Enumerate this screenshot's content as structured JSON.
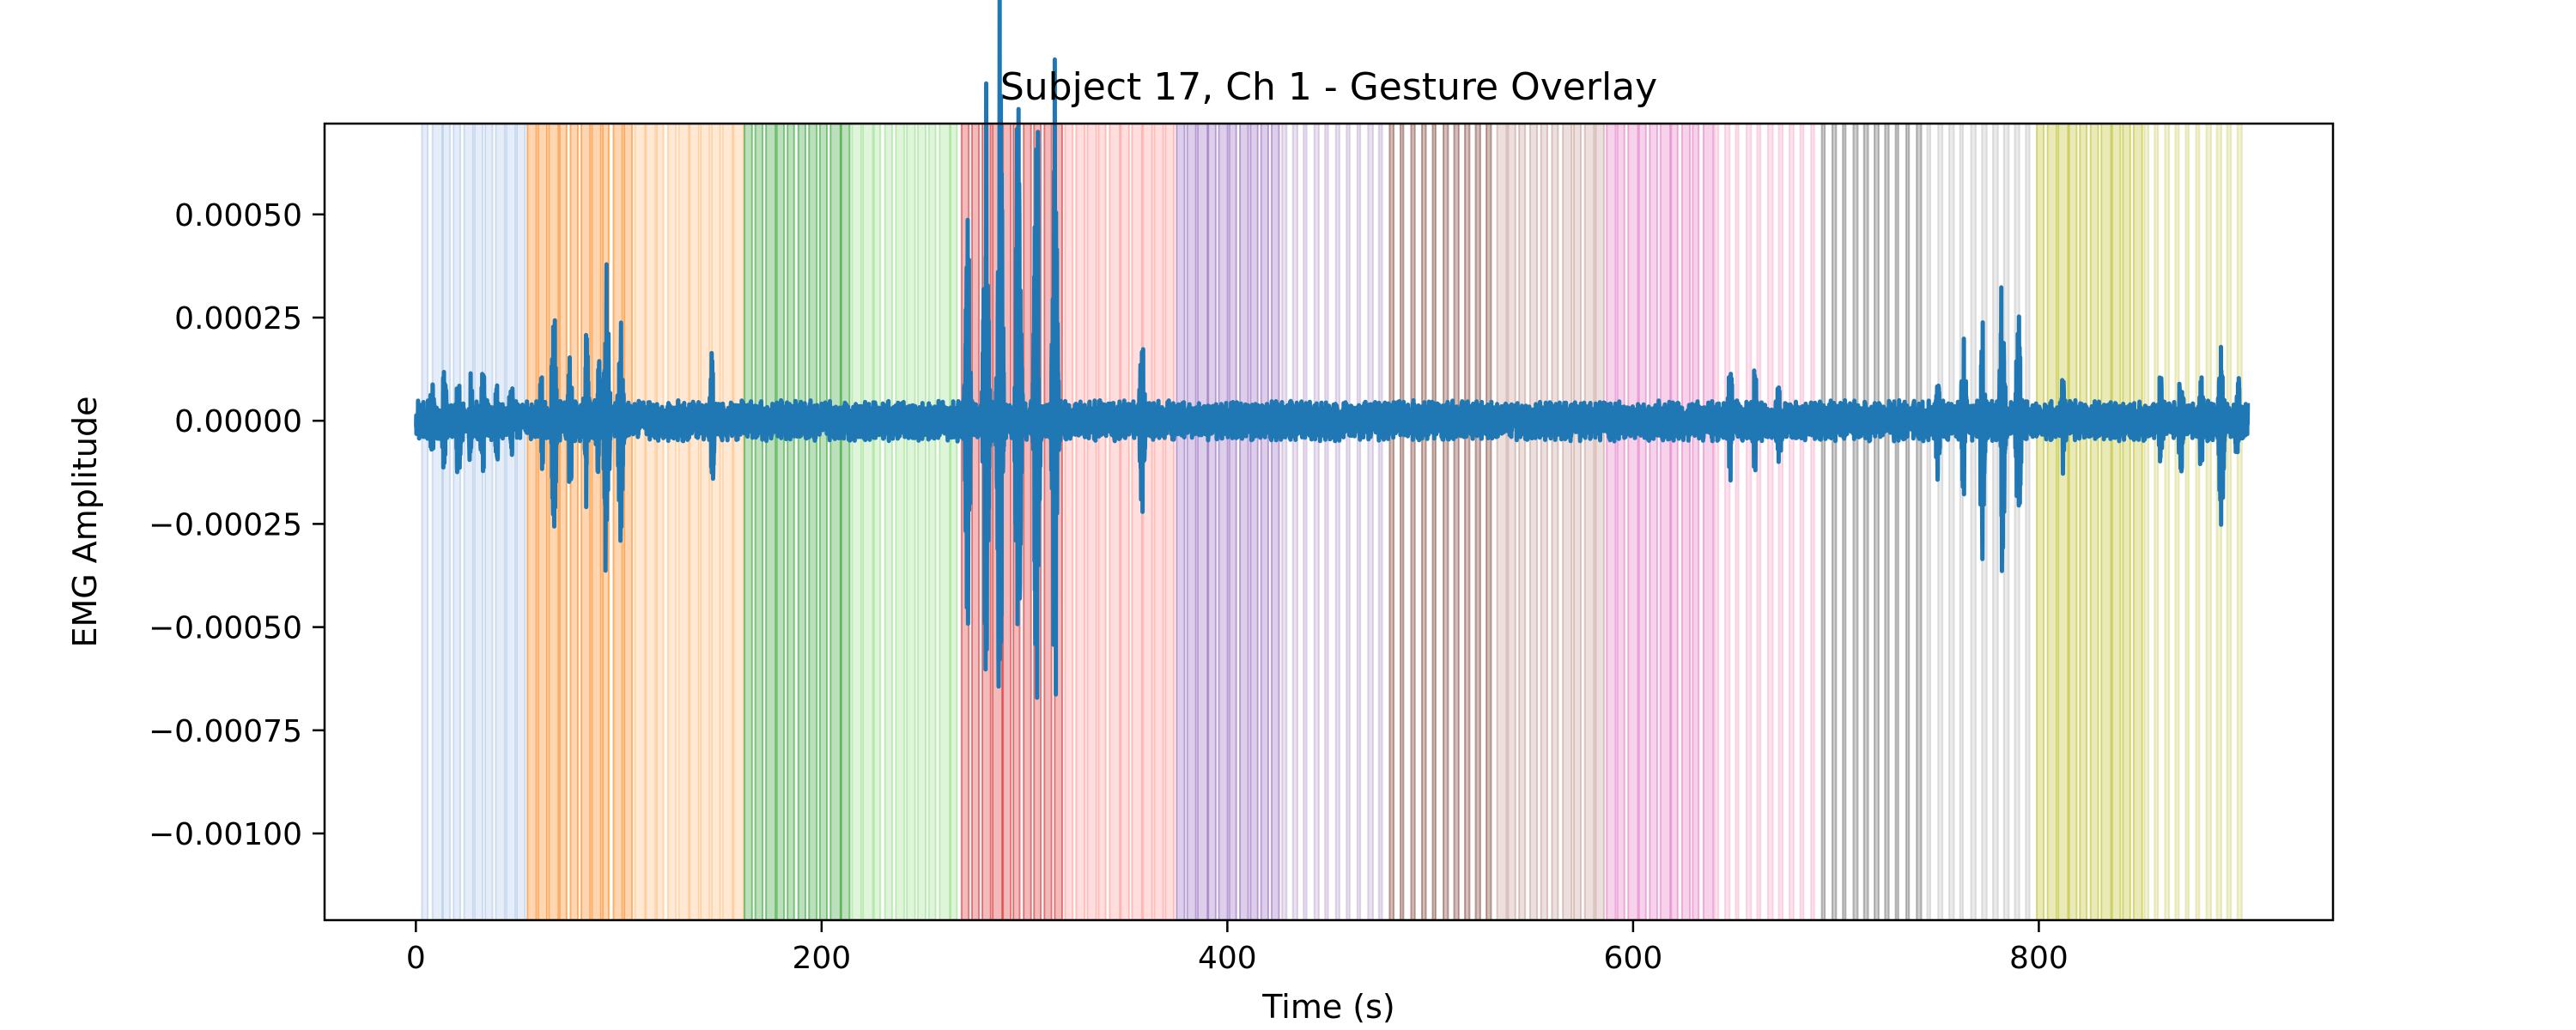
{
  "chart_data": {
    "type": "line",
    "title": "Subject 17, Ch 1 - Gesture Overlay",
    "xlabel": "Time (s)",
    "ylabel": "EMG Amplitude",
    "xlim": [
      -45,
      945
    ],
    "ylim": [
      -0.00121,
      0.00072
    ],
    "xticks": [
      0,
      200,
      400,
      600,
      800
    ],
    "xtick_labels": [
      "0",
      "200",
      "400",
      "600",
      "800"
    ],
    "yticks": [
      0.0005,
      0.00025,
      0.0,
      -0.00025,
      -0.0005,
      -0.00075,
      -0.001
    ],
    "ytick_labels": [
      "0.00050",
      "0.00025",
      "0.00000",
      "−0.00025",
      "−0.00050",
      "−0.00075",
      "−0.00100"
    ],
    "grid": false,
    "legend": "none",
    "signal_color": "#1f77b4",
    "signal_range": [
      0,
      903
    ],
    "baseline_amplitude": 5e-05,
    "gesture_overlay": [
      {
        "start": 3,
        "end": 55,
        "color": "#aec7e8",
        "style": "dense"
      },
      {
        "start": 55,
        "end": 108,
        "color": "#ff7f0e",
        "style": "dense"
      },
      {
        "start": 108,
        "end": 162,
        "color": "#ffbb78",
        "style": "dense"
      },
      {
        "start": 162,
        "end": 215,
        "color": "#2ca02c",
        "style": "dense"
      },
      {
        "start": 215,
        "end": 269,
        "color": "#98df8a",
        "style": "dense"
      },
      {
        "start": 269,
        "end": 320,
        "color": "#d62728",
        "style": "dense"
      },
      {
        "start": 320,
        "end": 375,
        "color": "#ff9896",
        "style": "dense"
      },
      {
        "start": 375,
        "end": 427,
        "color": "#9467bd",
        "style": "dense"
      },
      {
        "start": 427,
        "end": 480,
        "color": "#c5b0d5",
        "style": "sparse"
      },
      {
        "start": 480,
        "end": 533,
        "color": "#8c564b",
        "style": "sparse"
      },
      {
        "start": 533,
        "end": 587,
        "color": "#c49c94",
        "style": "dense"
      },
      {
        "start": 587,
        "end": 640,
        "color": "#e377c2",
        "style": "dense"
      },
      {
        "start": 640,
        "end": 693,
        "color": "#f7b6d2",
        "style": "sparse"
      },
      {
        "start": 693,
        "end": 745,
        "color": "#7f7f7f",
        "style": "sparse"
      },
      {
        "start": 745,
        "end": 799,
        "color": "#c7c7c7",
        "style": "sparse"
      },
      {
        "start": 799,
        "end": 852,
        "color": "#bcbd22",
        "style": "dense"
      },
      {
        "start": 852,
        "end": 903,
        "color": "#dbdb8d",
        "style": "sparse"
      }
    ],
    "bursts": [
      {
        "t": 8,
        "amp": 0.0001
      },
      {
        "t": 14,
        "amp": 0.00013
      },
      {
        "t": 21,
        "amp": 0.00016
      },
      {
        "t": 27,
        "amp": 0.00012
      },
      {
        "t": 33,
        "amp": 0.00014
      },
      {
        "t": 40,
        "amp": 0.00011
      },
      {
        "t": 47,
        "amp": 0.0001
      },
      {
        "t": 62,
        "amp": 0.00013
      },
      {
        "t": 68,
        "amp": 0.00029
      },
      {
        "t": 76,
        "amp": 0.00018
      },
      {
        "t": 84,
        "amp": 0.00021
      },
      {
        "t": 90,
        "amp": 0.00017
      },
      {
        "t": 94,
        "amp": 0.00043
      },
      {
        "t": 101,
        "amp": 0.00033
      },
      {
        "t": 146,
        "amp": 0.00017
      },
      {
        "t": 272,
        "amp": 0.00052
      },
      {
        "t": 281,
        "amp": 0.00083
      },
      {
        "t": 288,
        "amp": 0.0011
      },
      {
        "t": 297,
        "amp": 0.00098
      },
      {
        "t": 306,
        "amp": 0.0009
      },
      {
        "t": 315,
        "amp": 0.00088
      },
      {
        "t": 358,
        "amp": 0.00023
      },
      {
        "t": 648,
        "amp": 0.00015
      },
      {
        "t": 660,
        "amp": 0.00013
      },
      {
        "t": 672,
        "amp": 0.00012
      },
      {
        "t": 750,
        "amp": 0.00016
      },
      {
        "t": 763,
        "amp": 0.00022
      },
      {
        "t": 772,
        "amp": 0.00037
      },
      {
        "t": 782,
        "amp": 0.00038
      },
      {
        "t": 790,
        "amp": 0.00032
      },
      {
        "t": 812,
        "amp": 0.00013
      },
      {
        "t": 860,
        "amp": 0.00012
      },
      {
        "t": 870,
        "amp": 0.00015
      },
      {
        "t": 880,
        "amp": 0.00014
      },
      {
        "t": 890,
        "amp": 0.00032
      },
      {
        "t": 898,
        "amp": 0.00015
      }
    ]
  }
}
